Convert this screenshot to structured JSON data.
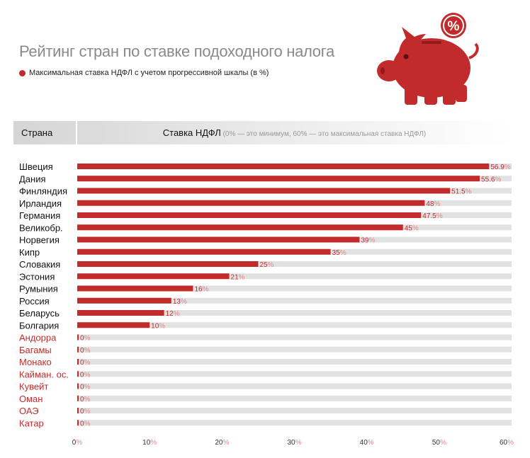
{
  "title": "Рейтинг стран по ставке подоходного налога",
  "legend_label": "Максимальная ставка НДФЛ с учетом прогрессивной шкалы (в %)",
  "header": {
    "country_label": "Страна",
    "rate_label": "Ставка НДФЛ",
    "rate_note": " (0% — это минимум, 60% — это максимальная ставка НДФЛ)"
  },
  "icon": {
    "name": "piggy-bank-icon",
    "badge_text": "%"
  },
  "colors": {
    "bar": "#c22b2b",
    "zero_label": "#c22b2b",
    "label": "#111111",
    "track": "#e2e2e2",
    "value_text": "#c22b2b",
    "percent_sign": "#dd8a8a",
    "axis_text": "#333333"
  },
  "chart_data": {
    "type": "bar",
    "orientation": "horizontal",
    "title": "Рейтинг стран по ставке подоходного налога",
    "xlabel": "Ставка НДФЛ",
    "ylabel": "Страна",
    "xlim": [
      0,
      60
    ],
    "xticks": [
      0,
      10,
      20,
      30,
      40,
      50,
      60
    ],
    "unit": "%",
    "categories": [
      "Швеция",
      "Дания",
      "Финляндия",
      "Ирландия",
      "Германия",
      "Великобр.",
      "Норвегия",
      "Кипр",
      "Словакия",
      "Эстония",
      "Румыния",
      "Россия",
      "Беларусь",
      "Болгария",
      "Андорра",
      "Багамы",
      "Монако",
      "Кайман. ос.",
      "Кувейт",
      "Оман",
      "ОАЭ",
      "Катар"
    ],
    "values": [
      56.9,
      55.6,
      51.5,
      48,
      47.5,
      45,
      39,
      35,
      25,
      21,
      16,
      13,
      12,
      10,
      0,
      0,
      0,
      0,
      0,
      0,
      0,
      0
    ],
    "value_labels": [
      "56.9",
      "55.6",
      "51.5",
      "48",
      "47.5",
      "45",
      "39",
      "35",
      "25",
      "21",
      "16",
      "13",
      "12",
      "10",
      "0",
      "0",
      "0",
      "0",
      "0",
      "0",
      "0",
      "0"
    ],
    "series": [
      {
        "name": "Максимальная ставка НДФЛ с учетом прогрессивной шкалы (в %)"
      }
    ]
  }
}
